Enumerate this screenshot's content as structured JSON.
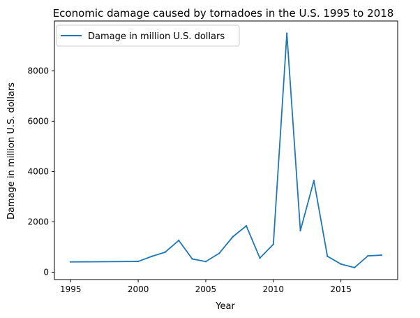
{
  "chart_data": {
    "type": "line",
    "title": "Economic damage caused by tornadoes in the U.S. 1995 to 2018",
    "xlabel": "Year",
    "ylabel": "Damage in million U.S. dollars",
    "xlim": [
      1993.8,
      2019.2
    ],
    "ylim": [
      -290,
      9980
    ],
    "xticks": [
      1995,
      2000,
      2005,
      2010,
      2015
    ],
    "yticks": [
      0,
      2000,
      4000,
      6000,
      8000
    ],
    "grid": false,
    "legend_position": "upper-left",
    "series": [
      {
        "name": "Damage in million U.S. dollars",
        "color": "#1f77b4",
        "x": [
          1995,
          2000,
          2001,
          2002,
          2003,
          2004,
          2005,
          2006,
          2007,
          2008,
          2009,
          2010,
          2011,
          2012,
          2013,
          2014,
          2015,
          2016,
          2017,
          2018
        ],
        "y": [
          410,
          430,
          630,
          800,
          1265,
          530,
          425,
          755,
          1410,
          1840,
          565,
          1110,
          9490,
          1650,
          3640,
          635,
          325,
          185,
          650,
          680
        ]
      }
    ]
  }
}
